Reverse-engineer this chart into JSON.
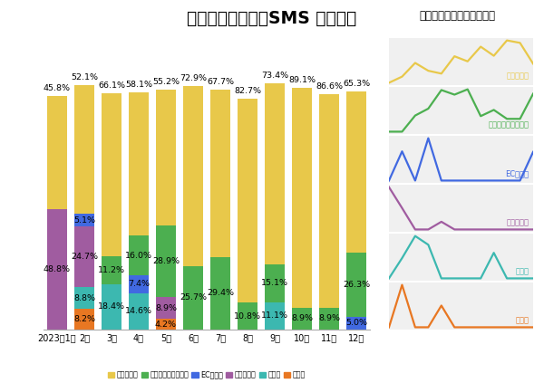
{
  "title": "フィッシング詐欺SMS 種別割合",
  "subtitle": "（トビラシステムズ調べ）",
  "months": [
    "2023年1月",
    "2月",
    "3月",
    "4月",
    "5月",
    "6月",
    "7月",
    "8月",
    "9月",
    "10月",
    "11月",
    "12月"
  ],
  "stack_order": [
    "その他",
    "官公庁",
    "通信事業者",
    "EC事業者",
    "金融・決済サービス",
    "宅配事業者"
  ],
  "colors": {
    "宅配事業者": "#E8C84A",
    "金融・決済サービス": "#4CAF50",
    "EC事業者": "#4169E1",
    "通信事業者": "#A05CA0",
    "官公庁": "#3CB8B0",
    "その他": "#E87722"
  },
  "data": {
    "宅配事業者": [
      45.8,
      52.1,
      66.1,
      58.1,
      55.2,
      72.9,
      67.7,
      82.7,
      73.4,
      89.1,
      86.6,
      65.3
    ],
    "金融・決済サービス": [
      0.0,
      0.0,
      11.2,
      16.0,
      28.9,
      25.7,
      29.4,
      10.8,
      15.1,
      8.9,
      8.9,
      26.3
    ],
    "EC事業者": [
      0.0,
      5.1,
      0.0,
      7.4,
      0.0,
      0.0,
      0.0,
      0.0,
      0.0,
      0.0,
      0.0,
      5.0
    ],
    "通信事業者": [
      48.8,
      24.7,
      0.0,
      0.0,
      8.9,
      0.0,
      0.0,
      0.0,
      0.0,
      0.0,
      0.0,
      0.0
    ],
    "官公庁": [
      0.0,
      8.8,
      18.4,
      14.6,
      0.0,
      0.0,
      0.0,
      0.0,
      11.1,
      0.0,
      0.0,
      0.0
    ],
    "その他": [
      0.0,
      8.2,
      0.0,
      0.0,
      4.2,
      0.0,
      0.0,
      0.0,
      0.0,
      0.0,
      0.0,
      0.0
    ]
  },
  "top_labels": [
    "45.8%",
    "52.1%",
    "66.1%",
    "58.1%",
    "55.2%",
    "72.9%",
    "67.7%",
    "82.7%",
    "73.4%",
    "89.1%",
    "86.6%",
    "65.3%"
  ],
  "inner_labels": [
    [
      0,
      "通信事業者",
      "48.8%"
    ],
    [
      1,
      "EC事業者",
      "5.1%"
    ],
    [
      1,
      "通信事業者",
      "24.7%"
    ],
    [
      1,
      "官公庁",
      "8.8%"
    ],
    [
      1,
      "その他",
      "8.2%"
    ],
    [
      2,
      "金融・決済サービス",
      "11.2%"
    ],
    [
      2,
      "官公庁",
      "18.4%"
    ],
    [
      3,
      "EC事業者",
      "7.4%"
    ],
    [
      3,
      "金融・決済サービス",
      "16.0%"
    ],
    [
      3,
      "官公庁",
      "14.6%"
    ],
    [
      4,
      "通信事業者",
      "8.9%"
    ],
    [
      4,
      "金融・決済サービス",
      "28.9%"
    ],
    [
      4,
      "その他",
      "4.2%"
    ],
    [
      5,
      "金融・決済サービス",
      "25.7%"
    ],
    [
      6,
      "金融・決済サービス",
      "29.4%"
    ],
    [
      7,
      "金融・決済サービス",
      "10.8%"
    ],
    [
      8,
      "金融・決済サービス",
      "15.1%"
    ],
    [
      8,
      "官公庁",
      "11.1%"
    ],
    [
      9,
      "金融・決済サービス",
      "8.9%"
    ],
    [
      10,
      "金融・決済サービス",
      "8.9%"
    ],
    [
      11,
      "EC事業者",
      "5.0%"
    ],
    [
      11,
      "金融・決済サービス",
      "26.3%"
    ]
  ],
  "line_panel_order": [
    "宅配事業者",
    "金融・決済サービス",
    "EC事業者",
    "通信事業者",
    "官公庁",
    "その他"
  ],
  "background_color": "#FFFFFF",
  "panel_bg": "#F0F0F0"
}
